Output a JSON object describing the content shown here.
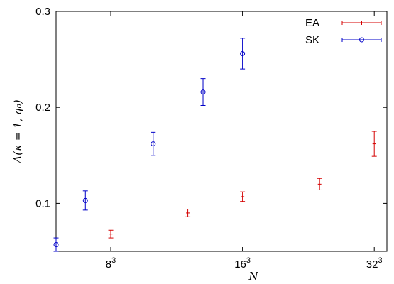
{
  "chart_data": {
    "type": "scatter",
    "xlabel": "N",
    "ylabel": "Δ(κ = 1, q₀)",
    "x_scale": "log",
    "xlim": [
      216,
      40000
    ],
    "ylim": [
      0.05,
      0.3
    ],
    "x_ticks": [
      {
        "value": 512,
        "base": "8",
        "exp": "3"
      },
      {
        "value": 4096,
        "base": "16",
        "exp": "3"
      },
      {
        "value": 32768,
        "base": "32",
        "exp": "3"
      }
    ],
    "y_ticks": [
      {
        "value": 0.1,
        "label": "0.1"
      },
      {
        "value": 0.2,
        "label": "0.2"
      },
      {
        "value": 0.3,
        "label": "0.3"
      }
    ],
    "grid": false,
    "legend_position": "top-right",
    "series": [
      {
        "name": "EA",
        "color": "#d40000",
        "marker": "plus",
        "points": [
          {
            "x": 512,
            "y": 0.068,
            "err": 0.004
          },
          {
            "x": 1728,
            "y": 0.09,
            "err": 0.004
          },
          {
            "x": 4096,
            "y": 0.107,
            "err": 0.005
          },
          {
            "x": 13824,
            "y": 0.12,
            "err": 0.006
          },
          {
            "x": 32768,
            "y": 0.162,
            "err": 0.013
          }
        ]
      },
      {
        "name": "SK",
        "color": "#0000c8",
        "marker": "circle",
        "points": [
          {
            "x": 216,
            "y": 0.057,
            "err": 0.007
          },
          {
            "x": 343,
            "y": 0.103,
            "err": 0.01
          },
          {
            "x": 1000,
            "y": 0.162,
            "err": 0.012
          },
          {
            "x": 2197,
            "y": 0.216,
            "err": 0.014
          },
          {
            "x": 4096,
            "y": 0.256,
            "err": 0.016
          }
        ]
      }
    ]
  }
}
